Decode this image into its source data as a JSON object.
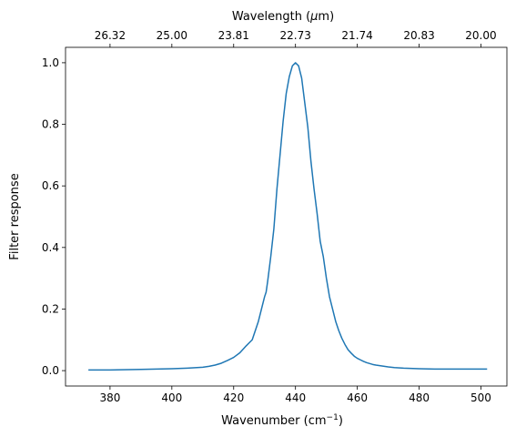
{
  "chart_data": {
    "type": "line",
    "xlabel": "Wavenumber (cm",
    "xlabel_sup": "−1",
    "xlabel_end": ")",
    "ylabel": "Filter response",
    "top_label": "Wavelength (",
    "top_label_mu": "μ",
    "top_label_end": "m)",
    "xlim": [
      365.6,
      508.4
    ],
    "ylim": [
      -0.05,
      1.05
    ],
    "grid": false,
    "bottom_ticks": [
      {
        "value": 380,
        "label": "380"
      },
      {
        "value": 400,
        "label": "400"
      },
      {
        "value": 420,
        "label": "420"
      },
      {
        "value": 440,
        "label": "440"
      },
      {
        "value": 460,
        "label": "460"
      },
      {
        "value": 480,
        "label": "480"
      },
      {
        "value": 500,
        "label": "500"
      }
    ],
    "top_ticks": [
      {
        "value": 380,
        "label": "26.32"
      },
      {
        "value": 400,
        "label": "25.00"
      },
      {
        "value": 420,
        "label": "23.81"
      },
      {
        "value": 440,
        "label": "22.73"
      },
      {
        "value": 460,
        "label": "21.74"
      },
      {
        "value": 480,
        "label": "20.83"
      },
      {
        "value": 500,
        "label": "20.00"
      }
    ],
    "y_ticks": [
      {
        "value": 0.0,
        "label": "0.0"
      },
      {
        "value": 0.2,
        "label": "0.2"
      },
      {
        "value": 0.4,
        "label": "0.4"
      },
      {
        "value": 0.6,
        "label": "0.6"
      },
      {
        "value": 0.8,
        "label": "0.8"
      },
      {
        "value": 1.0,
        "label": "1.0"
      }
    ],
    "series": [
      {
        "color": "#1f77b4",
        "x": [
          373,
          380,
          390,
          400,
          405,
          410,
          412,
          414,
          416,
          418,
          420,
          422,
          424,
          425,
          426,
          427,
          428,
          429,
          430,
          430.5,
          431,
          432,
          433,
          434,
          435,
          436,
          437,
          438,
          439,
          440,
          441,
          442,
          443,
          444,
          445,
          446,
          447,
          448,
          449,
          450,
          451,
          452,
          453,
          454,
          455,
          456,
          457,
          458,
          459,
          460,
          461,
          462,
          463,
          464,
          465,
          466,
          468,
          470,
          472,
          475,
          480,
          485,
          490,
          502
        ],
        "y": [
          0.002,
          0.002,
          0.004,
          0.006,
          0.008,
          0.011,
          0.014,
          0.018,
          0.024,
          0.033,
          0.043,
          0.058,
          0.08,
          0.09,
          0.1,
          0.13,
          0.16,
          0.2,
          0.24,
          0.255,
          0.29,
          0.37,
          0.46,
          0.59,
          0.7,
          0.81,
          0.9,
          0.955,
          0.99,
          1.0,
          0.99,
          0.95,
          0.87,
          0.79,
          0.68,
          0.59,
          0.51,
          0.42,
          0.37,
          0.3,
          0.24,
          0.2,
          0.16,
          0.13,
          0.105,
          0.085,
          0.068,
          0.057,
          0.047,
          0.04,
          0.035,
          0.03,
          0.026,
          0.023,
          0.02,
          0.018,
          0.015,
          0.012,
          0.01,
          0.008,
          0.006,
          0.005,
          0.005,
          0.005
        ]
      }
    ]
  }
}
